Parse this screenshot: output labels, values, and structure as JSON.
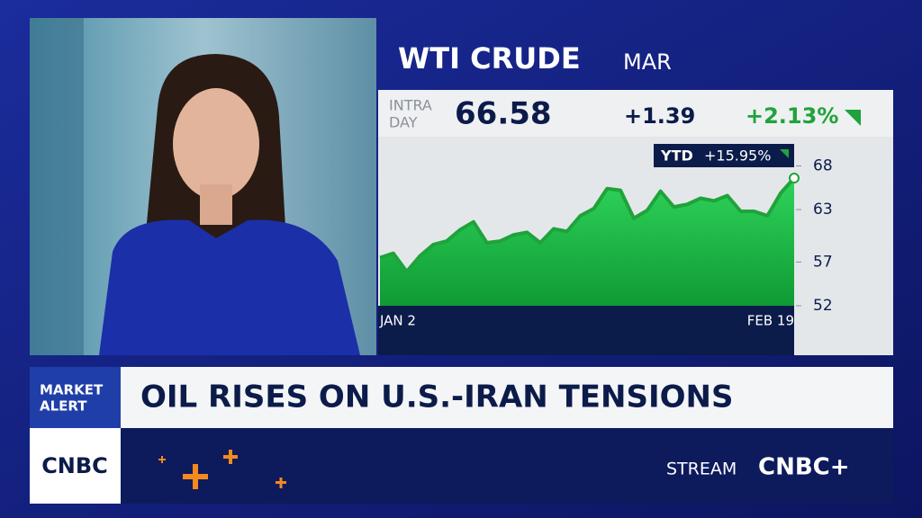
{
  "chart_data": {
    "type": "area",
    "title": "WTI CRUDE",
    "subtitle": "MAR",
    "categories": [
      "JAN 2",
      null,
      null,
      null,
      null,
      null,
      null,
      null,
      null,
      null,
      null,
      null,
      null,
      null,
      null,
      null,
      null,
      null,
      null,
      null,
      null,
      null,
      null,
      null,
      null,
      null,
      null,
      null,
      null,
      null,
      null,
      "FEB 19"
    ],
    "values": [
      57.5,
      58.0,
      55.9,
      57.7,
      59.0,
      59.4,
      60.7,
      61.6,
      59.2,
      59.4,
      60.1,
      60.4,
      59.2,
      60.8,
      60.5,
      62.3,
      63.1,
      65.4,
      65.2,
      62.0,
      62.9,
      65.1,
      63.3,
      63.6,
      64.3,
      64.0,
      64.6,
      62.8,
      62.8,
      62.3,
      64.9,
      66.6
    ],
    "color": "#1fa33a",
    "ylim": [
      52,
      70
    ],
    "yticks": [
      68,
      63,
      57,
      52
    ],
    "ytd_label": "YTD",
    "ytd_change": "+15.95%"
  },
  "quote": {
    "intraday_label": [
      "INTRA",
      "DAY"
    ],
    "price": "66.58",
    "change": "+1.39",
    "change_pct": "+2.13%"
  },
  "banner": {
    "tag": [
      "MARKET",
      "ALERT"
    ],
    "headline": "OIL RISES ON U.S.-IRAN TENSIONS"
  },
  "footer": {
    "logo": "CNBC",
    "stream": "STREAM",
    "stream_logo": "CNBC+"
  }
}
